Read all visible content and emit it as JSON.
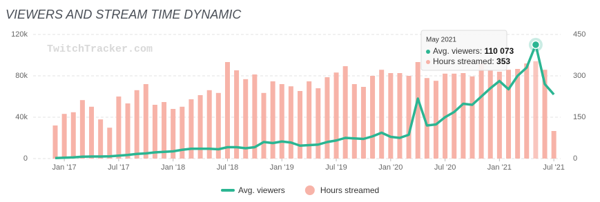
{
  "chart_data": {
    "type": "bar-line",
    "title": "VIEWERS AND STREAM TIME DYNAMIC",
    "watermark": "TwitchTracker.com",
    "categories": [
      null,
      "Jan '17",
      null,
      null,
      null,
      null,
      null,
      "Jul '17",
      null,
      null,
      null,
      null,
      null,
      "Jan '18",
      null,
      null,
      null,
      null,
      null,
      "Jul '18",
      null,
      null,
      null,
      null,
      null,
      "Jan '19",
      null,
      null,
      null,
      null,
      null,
      "Jul '19",
      null,
      null,
      null,
      null,
      null,
      "Jan '20",
      null,
      null,
      null,
      null,
      null,
      "Jul '20",
      null,
      null,
      null,
      null,
      null,
      "Jan '21",
      null,
      null,
      null,
      null,
      null,
      "Jul '21"
    ],
    "series": [
      {
        "name": "Avg. viewers",
        "type": "line",
        "axis": "y",
        "color": "#2bb592",
        "values": [
          500,
          800,
          1200,
          1800,
          2000,
          2000,
          2200,
          2800,
          3500,
          4500,
          5000,
          6000,
          6500,
          7000,
          8500,
          9500,
          9500,
          9500,
          9000,
          11000,
          11000,
          10000,
          11000,
          16000,
          15000,
          16500,
          15500,
          12500,
          13000,
          13500,
          16000,
          17500,
          20000,
          19500,
          19000,
          21500,
          25000,
          21000,
          20000,
          23000,
          58000,
          32000,
          33000,
          40000,
          45000,
          53000,
          52000,
          60000,
          68000,
          75000,
          67000,
          80000,
          88000,
          110073,
          72000,
          62000
        ]
      },
      {
        "name": "Hours streamed",
        "type": "bar",
        "axis": "y2",
        "color": "#f7b3a8",
        "values": [
          120,
          162,
          168,
          212,
          188,
          142,
          112,
          225,
          200,
          248,
          270,
          195,
          205,
          180,
          188,
          215,
          230,
          248,
          238,
          350,
          320,
          288,
          305,
          238,
          280,
          270,
          262,
          245,
          280,
          255,
          295,
          312,
          335,
          270,
          260,
          300,
          322,
          310,
          310,
          300,
          350,
          292,
          282,
          308,
          308,
          310,
          298,
          345,
          320,
          315,
          322,
          325,
          345,
          353,
          322,
          100
        ]
      }
    ],
    "ylim": [
      0,
      120000
    ],
    "yticks": [
      0,
      {
        "value": 40000,
        "label": "40k"
      },
      {
        "value": 80000,
        "label": "80k"
      },
      {
        "value": 120000,
        "label": "120k"
      }
    ],
    "y2lim": [
      0,
      450
    ],
    "y2ticks": [
      0,
      150,
      300,
      450
    ],
    "grid": true,
    "legend": "bottom",
    "tooltip": {
      "title": "May 2021",
      "index": 53,
      "value_labels": [
        "110 073",
        "353"
      ]
    }
  }
}
